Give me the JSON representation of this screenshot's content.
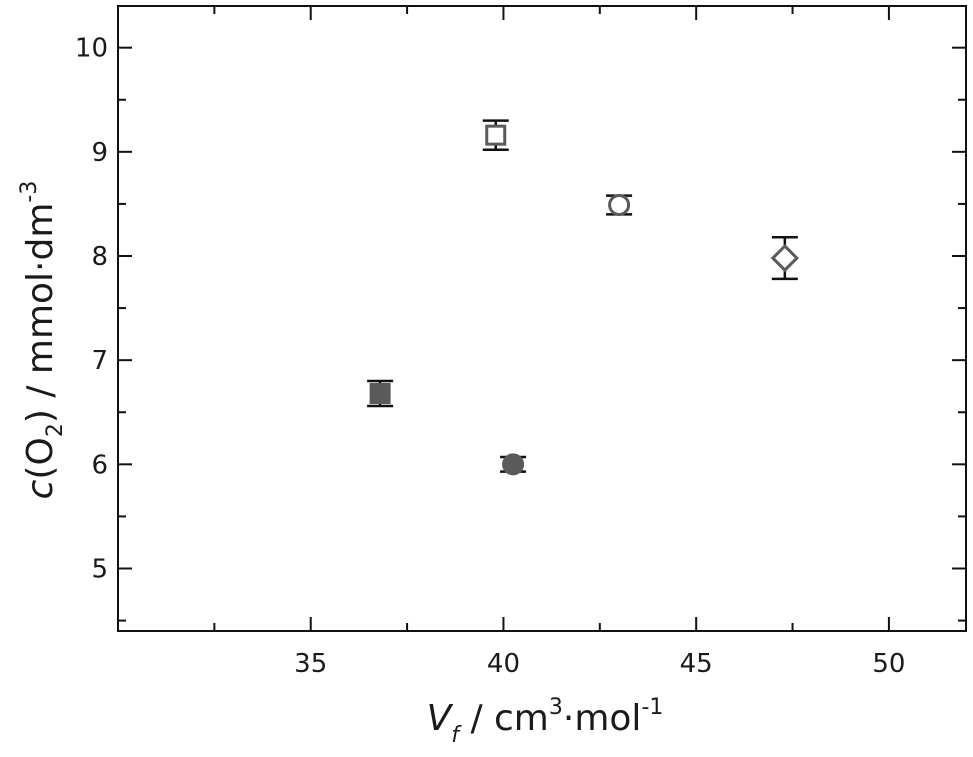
{
  "chart_data": {
    "type": "scatter",
    "xlabel_parts": {
      "var": "V",
      "sub": "f",
      "unit_a": " / cm",
      "sup_a": "3",
      "unit_b": "·mol",
      "sup_b": "-1"
    },
    "ylabel_parts": {
      "var": "c",
      "open": "(O",
      "sub": "2",
      "close": ") / mmol·dm",
      "sup": "-3"
    },
    "xlim": [
      30,
      52
    ],
    "ylim": [
      4.4,
      10.4
    ],
    "xticks": [
      35,
      40,
      45,
      50
    ],
    "yticks": [
      5,
      6,
      7,
      8,
      9,
      10
    ],
    "points": [
      {
        "x": 36.8,
        "y": 6.68,
        "err": 0.12,
        "marker": "square",
        "filled": true
      },
      {
        "x": 39.8,
        "y": 9.16,
        "err": 0.14,
        "marker": "square",
        "filled": false
      },
      {
        "x": 40.25,
        "y": 6.0,
        "err": 0.07,
        "marker": "circle",
        "filled": true
      },
      {
        "x": 43.0,
        "y": 8.49,
        "err": 0.09,
        "marker": "circle",
        "filled": false
      },
      {
        "x": 47.3,
        "y": 7.98,
        "err": 0.2,
        "marker": "diamond",
        "filled": false
      }
    ],
    "colors": {
      "marker_stroke": "#5a5a5a",
      "marker_fill": "#5a5a5a",
      "errorbar": "#111111",
      "axis": "#111111"
    },
    "grid": false
  }
}
